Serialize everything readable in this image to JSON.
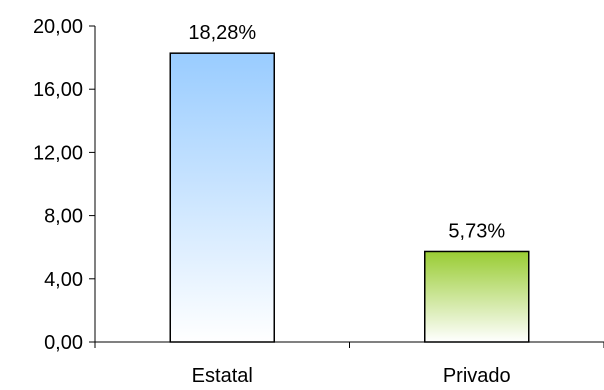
{
  "chart_data": {
    "type": "bar",
    "categories": [
      "Estatal",
      "Privado"
    ],
    "values": [
      18.28,
      5.73
    ],
    "data_labels": [
      "18,28%",
      "5,73%"
    ],
    "ylim": [
      0,
      20
    ],
    "yticks": [
      0,
      4,
      8,
      12,
      16,
      20
    ],
    "ytick_labels": [
      "0,00",
      "4,00",
      "8,00",
      "12,00",
      "16,00",
      "20,00"
    ],
    "grid": false,
    "legend": "none",
    "bar_colors": [
      {
        "top": "#99ccff",
        "bottom": "#ffffff"
      },
      {
        "top": "#99cc33",
        "bottom": "#ffffff"
      }
    ]
  }
}
